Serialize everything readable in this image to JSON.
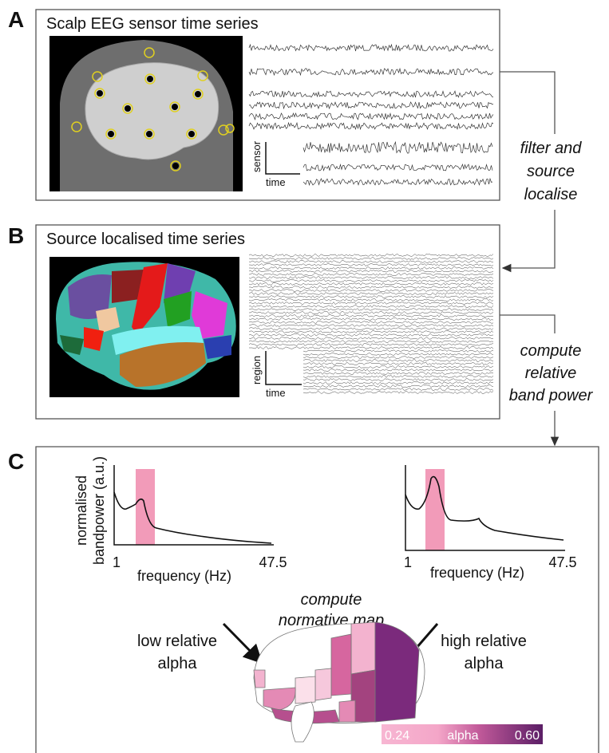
{
  "panels": [
    {
      "letter": "A",
      "title": "Scalp EEG sensor time series",
      "y_axis": "sensor",
      "x_axis": "time"
    },
    {
      "letter": "B",
      "title": "Source localised time series",
      "y_axis": "region",
      "x_axis": "time"
    },
    {
      "letter": "C",
      "plots": [
        {
          "y_label": [
            "normalised",
            "bandpower (a.u.)"
          ],
          "x_label": "frequency (Hz)",
          "x_min": "1",
          "x_max": "47.5"
        },
        {
          "x_label": "frequency (Hz)",
          "x_min": "1",
          "x_max": "47.5"
        }
      ],
      "center_label": [
        "compute",
        "normative map"
      ],
      "left_label": [
        "low relative",
        "alpha"
      ],
      "right_label": [
        "high relative",
        "alpha"
      ],
      "colorbar": {
        "min": "0.24",
        "label": "alpha",
        "max": "0.60"
      }
    }
  ],
  "steps": [
    [
      "filter and",
      "source",
      "localise"
    ],
    [
      "compute",
      "relative",
      "band power"
    ]
  ]
}
